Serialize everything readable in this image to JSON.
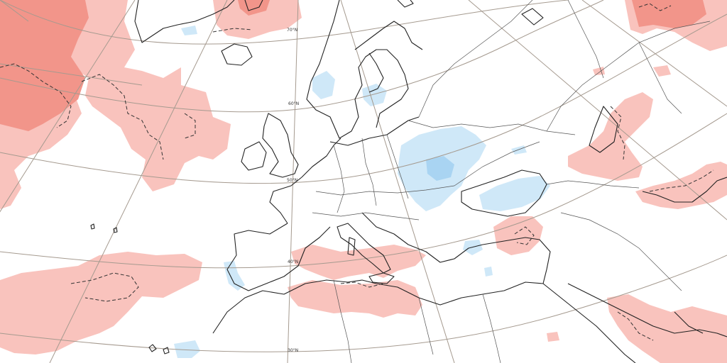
{
  "map": {
    "lat_labels": {
      "lat70": "70°N",
      "lat60": "60°N",
      "lat50": "50°N",
      "lat40": "40°N",
      "lat30": "30°N"
    },
    "colors": {
      "warm_light": "#f9c3bd",
      "warm_dark": "#f2958a",
      "cool_light": "#cfe8f8",
      "cool_dark": "#a9d4f2",
      "grid": "#a59a8f",
      "coast": "#222222"
    }
  }
}
